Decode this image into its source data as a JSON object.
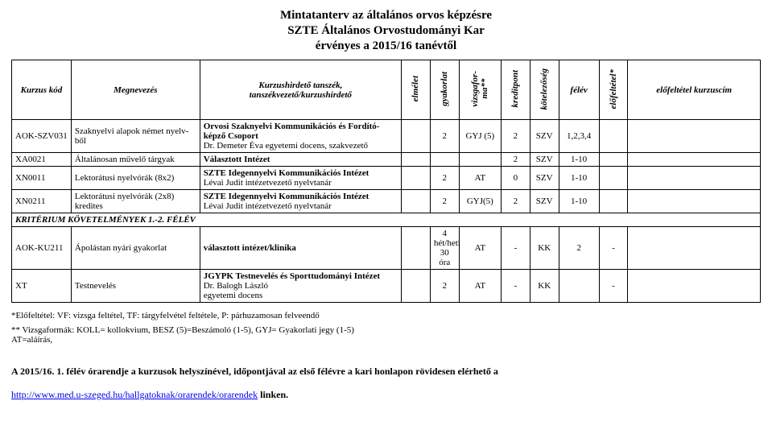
{
  "title": {
    "line1": "Mintatanterv az általános orvos képzésre",
    "line2": "SZTE Általános Orvostudományi Kar",
    "line3": "érvényes a 2015/16 tanévtől"
  },
  "headers": {
    "kod": "Kurzus kód",
    "megnevezes": "Megnevezés",
    "tanszek": "Kurzushirdető tanszék,\ntanszékvezető/kurzushirdető",
    "elmelet": "elmélet",
    "gyakorlat": "gyakorlat",
    "vizsgaforma": "vizsgafor-\nma**",
    "kreditpont": "kreditpont",
    "kotelezoseg": "kötelezőség",
    "felev": "félév",
    "elofeltetel": "előfeltétel*",
    "elofeltetel_cim": "előfeltétel kurzuscím"
  },
  "rows": [
    {
      "kod": "AOK-SZV031",
      "meg": "Szaknyelvi alapok német nyelv-ből",
      "tan": "Orvosi Szaknyelvi Kommunikációs és Fordító-képző Csoport\nDr. Demeter Éva egyetemi docens, szakvezető",
      "elm": "",
      "gyak": "2",
      "vf": "GYJ (5)",
      "kp": "2",
      "kot": "SZV",
      "fv": "1,2,3,4",
      "ef": "",
      "efc": ""
    },
    {
      "kod": "XA0021",
      "meg": "Általánosan művelő tárgyak",
      "tan": "Választott Intézet",
      "elm": "",
      "gyak": "",
      "vf": "",
      "kp": "2",
      "kot": "SZV",
      "fv": "1-10",
      "ef": "",
      "efc": ""
    },
    {
      "kod": "XN0011",
      "meg": "Lektorátusi nyelvórák (8x2)",
      "tan": "SZTE Idegennyelvi Kommunikációs Intézet\nLévai Judit intézetvezető nyelvtanár",
      "elm": "",
      "gyak": "2",
      "vf": "AT",
      "kp": "0",
      "kot": "SZV",
      "fv": "1-10",
      "ef": "",
      "efc": ""
    },
    {
      "kod": "XN0211",
      "meg": "Lektorátusi nyelvórák (2x8) kredites",
      "tan": "SZTE Idegennyelvi Kommunikációs Intézet\nLévai Judit intézetvezető nyelvtanár",
      "elm": "",
      "gyak": "2",
      "vf": "GYJ(5)",
      "kp": "2",
      "kot": "SZV",
      "fv": "1-10",
      "ef": "",
      "efc": ""
    }
  ],
  "section": "KRITÉRIUM KÖVETELMÉNYEK 1.-2. FÉLÉV",
  "rows2": [
    {
      "kod": "AOK-KU211",
      "meg": "Ápolástan nyári gyakorlat",
      "tan": "választott intézet/klinika",
      "elm": "",
      "gyak": "4 hét/heti 30 óra",
      "vf": "AT",
      "kp": "-",
      "kot": "KK",
      "fv": "2",
      "ef": "-",
      "efc": ""
    },
    {
      "kod": "XT",
      "meg": "Testnevelés",
      "tan": "JGYPK Testnevelés és Sporttudományi Intézet\nDr. Balogh László\negyetemi docens",
      "elm": "",
      "gyak": "2",
      "vf": "AT",
      "kp": "-",
      "kot": "KK",
      "fv": "",
      "ef": "-",
      "efc": ""
    }
  ],
  "footnotes": {
    "f1": "*Előfeltétel: VF: vizsga feltétel, TF: tárgyfelvétel feltétele, P: párhuzamosan felveendő",
    "f2": "** Vizsgaformák: KOLL= kollokvium, BESZ (5)=Beszámoló (1-5), GYJ= Gyakorlati jegy (1-5)\nAT=aláírás,"
  },
  "bottom": {
    "text1": "A 2015/16. 1. félév órarendje a kurzusok helyszínével, időpontjával az első félévre a kari honlapon rövidesen elérhető a",
    "link": "http://www.med.u-szeged.hu/hallgatoknak/orarendek/orarendek",
    "text2": " linken."
  }
}
